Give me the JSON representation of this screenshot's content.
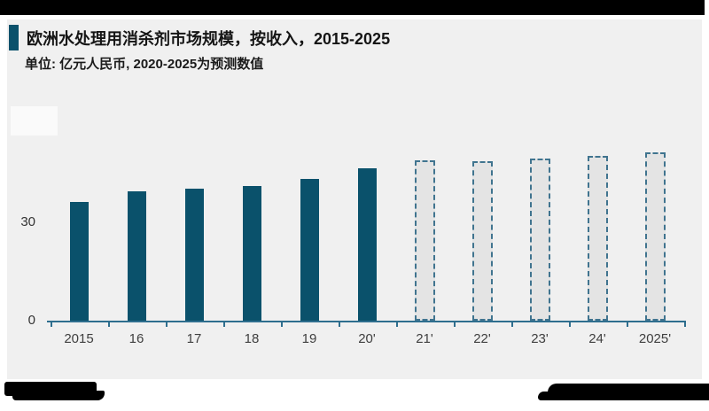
{
  "header": {
    "title": "欧洲水处理用消杀剂市场规模，按收入，2015-2025",
    "subtitle": "单位: 亿元人民币, 2020-2025为预测数值"
  },
  "chart_data": {
    "type": "bar",
    "title": "欧洲水处理用消杀剂市场规模，按收入，2015-2025",
    "unit_label": "单位: 亿元人民币",
    "forecast_note": "2020-2025为预测数值",
    "categories": [
      "2015",
      "16",
      "17",
      "18",
      "19",
      "20'",
      "21'",
      "22'",
      "23'",
      "24'",
      "2025'"
    ],
    "values": [
      36.2,
      39.4,
      40.3,
      41.1,
      43.2,
      46.5,
      48.9,
      48.6,
      49.5,
      50.3,
      51.4
    ],
    "bar_styles": [
      "solid",
      "solid",
      "solid",
      "solid",
      "solid",
      "solid",
      "dashed",
      "dashed",
      "dashed",
      "dashed",
      "dashed"
    ],
    "y_ticks": [
      {
        "label": "30",
        "value": 30
      },
      {
        "label": "0",
        "value": 0
      }
    ],
    "ylim": [
      0,
      55
    ],
    "grid": false,
    "legend": "none",
    "colors": {
      "solid_bar": "#0a516b",
      "dashed_bar_border": "#40748f",
      "dashed_bar_fill": "#e4e4e4",
      "axis": "#2e6e8e",
      "panel_background": "#f0f0f0",
      "accent_bar": "#0a516b",
      "redaction": "#000000"
    }
  }
}
